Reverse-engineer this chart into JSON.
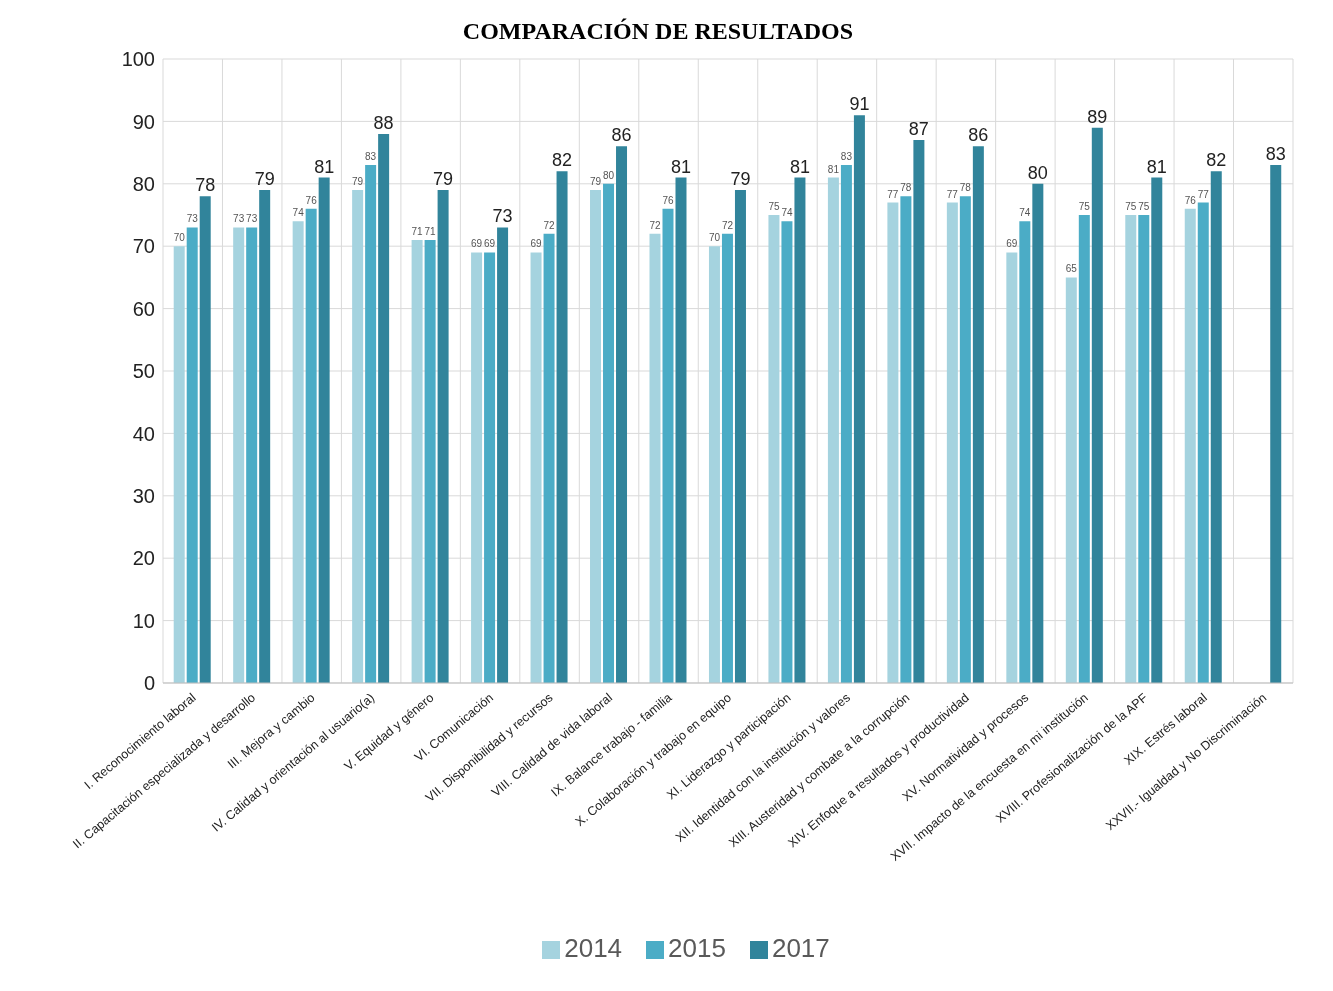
{
  "chart_data": {
    "type": "bar",
    "title": "COMPARACIÓN DE RESULTADOS",
    "categories": [
      "I. Reconocimiento laboral",
      "II. Capacitación especializada y desarrollo",
      "III. Mejora y cambio",
      "IV. Calidad y orientación al usuario(a)",
      "V. Equidad y género",
      "VI. Comunicación",
      "VII. Disponibilidad y recursos",
      "VIII. Calidad de vida laboral",
      "IX. Balance trabajo - familia",
      "X. Colaboración y trabajo en equipo",
      "XI. Liderazgo y participación",
      "XII. Identidad con la institución y valores",
      "XIII. Austeridad y combate a la corrupción",
      "XIV. Enfoque a resultados y productividad",
      "XV. Normatividad y procesos",
      "XVII. Impacto de la encuesta en mi institución",
      "XVIII. Profesionalización de la APF",
      "XIX. Estrés laboral",
      "XXVII.- Igualdad y No Discriminación"
    ],
    "series": [
      {
        "name": "2014",
        "color": "#a5d3df",
        "values": [
          70,
          73,
          74,
          79,
          71,
          69,
          69,
          79,
          72,
          70,
          75,
          81,
          77,
          77,
          69,
          65,
          75,
          76,
          null
        ]
      },
      {
        "name": "2015",
        "color": "#4bacc6",
        "values": [
          73,
          73,
          76,
          83,
          71,
          69,
          72,
          80,
          76,
          72,
          74,
          83,
          78,
          78,
          74,
          75,
          75,
          77,
          null
        ]
      },
      {
        "name": "2017",
        "color": "#31849b",
        "values": [
          78,
          79,
          81,
          88,
          79,
          73,
          82,
          86,
          81,
          79,
          81,
          91,
          87,
          86,
          80,
          89,
          81,
          82,
          83
        ]
      }
    ],
    "ylim": [
      0,
      100
    ],
    "yticks": [
      0,
      10,
      20,
      30,
      40,
      50,
      60,
      70,
      80,
      90,
      100
    ],
    "grid": true,
    "legend": "bottom",
    "data_labels": true
  }
}
